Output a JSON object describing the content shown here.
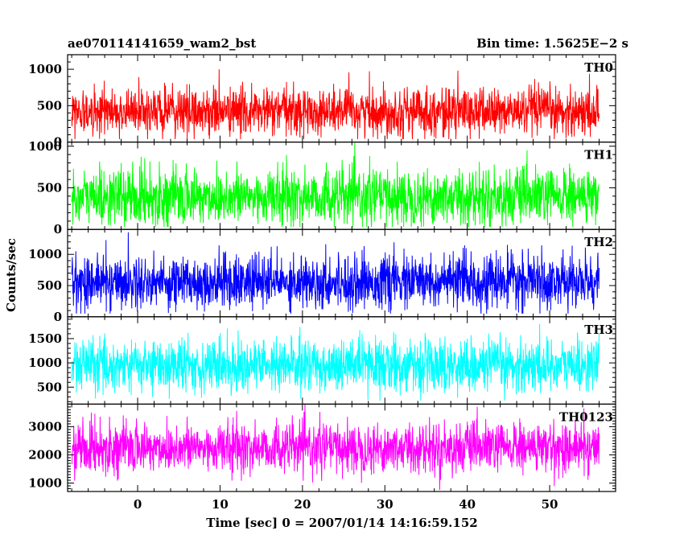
{
  "chart_data": {
    "type": "line",
    "title_left": "ae070114141659_wam2_bst",
    "title_right": "Bin time: 1.5625E−2 s",
    "xlabel": "Time [sec] 0 = 2007/01/14 14:16:59.152",
    "ylabel": "Counts/sec",
    "xlim": [
      -8.5,
      58
    ],
    "data_x_range": [
      -8,
      56
    ],
    "x_ticks": [
      0,
      10,
      20,
      30,
      40,
      50
    ],
    "x_tick_labels": [
      "0",
      "10",
      "20",
      "30",
      "40",
      "50"
    ],
    "grid": false,
    "panels": [
      {
        "name": "TH0",
        "color": "#ff0000",
        "ylim": [
          0,
          1200
        ],
        "y_ticks": [
          0,
          500,
          1000
        ],
        "y_tick_labels": [
          "0",
          "500",
          "1000"
        ],
        "mean": 420,
        "sigma": 165,
        "series_min": 40,
        "series_max": 1200
      },
      {
        "name": "TH1",
        "color": "#00ff00",
        "ylim": [
          0,
          1050
        ],
        "y_ticks": [
          0,
          500,
          1000
        ],
        "y_tick_labels": [
          "0",
          "500",
          "1000"
        ],
        "mean": 390,
        "sigma": 170,
        "series_min": 30,
        "series_max": 1050
      },
      {
        "name": "TH2",
        "color": "#0000ff",
        "ylim": [
          0,
          1400
        ],
        "y_ticks": [
          0,
          500,
          1000
        ],
        "y_tick_labels": [
          "0",
          "500",
          "1000"
        ],
        "mean": 560,
        "sigma": 210,
        "series_min": 50,
        "series_max": 1400
      },
      {
        "name": "TH3",
        "color": "#00ffff",
        "ylim": [
          150,
          1950
        ],
        "y_ticks": [
          500,
          1000,
          1500
        ],
        "y_tick_labels": [
          "500",
          "1000",
          "1500"
        ],
        "mean": 950,
        "sigma": 270,
        "series_min": 220,
        "series_max": 1950
      },
      {
        "name": "TH0123",
        "color": "#ff00ff",
        "ylim": [
          700,
          3800
        ],
        "y_ticks": [
          1000,
          2000,
          3000
        ],
        "y_tick_labels": [
          "1000",
          "2000",
          "3000"
        ],
        "mean": 2250,
        "sigma": 440,
        "series_min": 750,
        "series_max": 3800
      }
    ]
  }
}
